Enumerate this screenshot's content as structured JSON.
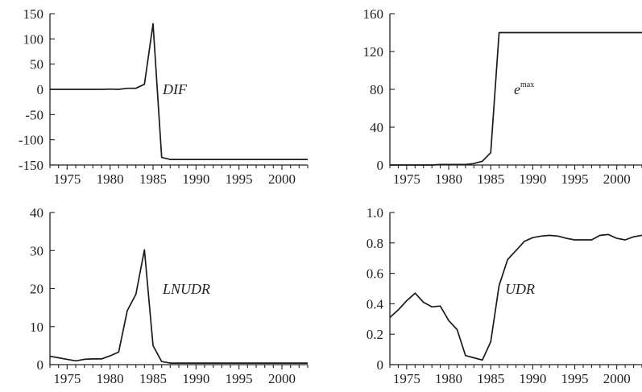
{
  "chart_data": [
    {
      "type": "line",
      "series": [
        {
          "name": "DIF",
          "x": [
            1973,
            1974,
            1975,
            1976,
            1977,
            1978,
            1979,
            1980,
            1981,
            1982,
            1983,
            1984,
            1985,
            1986,
            1987,
            1988,
            1989,
            1990,
            1991,
            1992,
            1993,
            1994,
            1995,
            1996,
            1997,
            1998,
            1999,
            2000,
            2001,
            2002,
            2003
          ],
          "values": [
            0,
            0,
            0,
            0,
            0,
            0,
            0,
            0.5,
            0,
            2,
            2,
            10,
            130,
            -135,
            -139,
            -139,
            -139,
            -139,
            -139,
            -139,
            -139,
            -139,
            -139,
            -139,
            -139,
            -139,
            -139,
            -139,
            -139,
            -139,
            -139
          ]
        }
      ],
      "series_label": "DIF",
      "xlim": [
        1973,
        2003
      ],
      "ylim": [
        -150,
        150
      ],
      "x_ticks": [
        1975,
        1980,
        1985,
        1990,
        1995,
        2000
      ],
      "y_ticks": [
        150,
        100,
        50,
        0,
        -50,
        -100,
        -150
      ],
      "x_tick_labels": [
        "1975",
        "1980",
        "1985",
        "1990",
        "1995",
        "2000"
      ],
      "y_tick_labels": [
        "150",
        "100",
        "50",
        "0",
        "-50",
        "-100",
        "-150"
      ]
    },
    {
      "type": "line",
      "series": [
        {
          "name": "e max",
          "x": [
            1973,
            1974,
            1975,
            1976,
            1977,
            1978,
            1979,
            1980,
            1981,
            1982,
            1983,
            1984,
            1985,
            1986,
            1987,
            1988,
            1989,
            1990,
            1991,
            1992,
            1993,
            1994,
            1995,
            1996,
            1997,
            1998,
            1999,
            2000,
            2001,
            2002,
            2003
          ],
          "values": [
            0,
            0,
            0,
            0,
            0,
            0,
            0.5,
            0.5,
            0.5,
            0.5,
            1.5,
            4,
            13,
            140,
            140,
            140,
            140,
            140,
            140,
            140,
            140,
            140,
            140,
            140,
            140,
            140,
            140,
            140,
            140,
            140,
            140
          ]
        }
      ],
      "series_label": "e",
      "series_label_sup": "max",
      "xlim": [
        1973,
        2003
      ],
      "ylim": [
        0,
        160
      ],
      "x_ticks": [
        1975,
        1980,
        1985,
        1990,
        1995,
        2000
      ],
      "y_ticks": [
        160,
        120,
        80,
        40,
        0
      ],
      "x_tick_labels": [
        "1975",
        "1980",
        "1985",
        "1990",
        "1995",
        "2000"
      ],
      "y_tick_labels": [
        "160",
        "120",
        "80",
        "40",
        "0"
      ]
    },
    {
      "type": "line",
      "series": [
        {
          "name": "LNUDR",
          "x": [
            1973,
            1974,
            1975,
            1976,
            1977,
            1978,
            1979,
            1980,
            1981,
            1982,
            1983,
            1984,
            1985,
            1986,
            1987,
            1988,
            1989,
            1990,
            1991,
            1992,
            1993,
            1994,
            1995,
            1996,
            1997,
            1998,
            1999,
            2000,
            2001,
            2002,
            2003
          ],
          "values": [
            2.2,
            1.8,
            1.4,
            1.0,
            1.4,
            1.5,
            1.5,
            2.3,
            3.3,
            14.2,
            18.5,
            30.2,
            5.0,
            0.8,
            0.4,
            0.4,
            0.4,
            0.4,
            0.4,
            0.4,
            0.4,
            0.4,
            0.4,
            0.4,
            0.4,
            0.4,
            0.4,
            0.4,
            0.4,
            0.4,
            0.4
          ]
        }
      ],
      "series_label": "LNUDR",
      "xlim": [
        1973,
        2003
      ],
      "ylim": [
        0,
        40
      ],
      "x_ticks": [
        1975,
        1980,
        1985,
        1990,
        1995,
        2000
      ],
      "y_ticks": [
        40,
        30,
        20,
        10,
        0
      ],
      "x_tick_labels": [
        "1975",
        "1980",
        "1985",
        "1990",
        "1995",
        "2000"
      ],
      "y_tick_labels": [
        "40",
        "30",
        "20",
        "10",
        "0"
      ]
    },
    {
      "type": "line",
      "series": [
        {
          "name": "UDR",
          "x": [
            1973,
            1974,
            1975,
            1976,
            1977,
            1978,
            1979,
            1980,
            1981,
            1982,
            1983,
            1984,
            1985,
            1986,
            1987,
            1988,
            1989,
            1990,
            1991,
            1992,
            1993,
            1994,
            1995,
            1996,
            1997,
            1998,
            1999,
            2000,
            2001,
            2002,
            2003
          ],
          "values": [
            0.31,
            0.36,
            0.42,
            0.47,
            0.41,
            0.38,
            0.385,
            0.29,
            0.23,
            0.06,
            0.045,
            0.03,
            0.15,
            0.52,
            0.69,
            0.75,
            0.81,
            0.835,
            0.845,
            0.85,
            0.845,
            0.83,
            0.82,
            0.82,
            0.82,
            0.85,
            0.855,
            0.83,
            0.82,
            0.84,
            0.85
          ]
        }
      ],
      "series_label": "UDR",
      "xlim": [
        1973,
        2003
      ],
      "ylim": [
        0,
        1.0
      ],
      "x_ticks": [
        1975,
        1980,
        1985,
        1990,
        1995,
        2000
      ],
      "y_ticks": [
        1.0,
        0.8,
        0.6,
        0.4,
        0.2,
        0
      ],
      "x_tick_labels": [
        "1975",
        "1980",
        "1985",
        "1990",
        "1995",
        "2000"
      ],
      "y_tick_labels": [
        "1.0",
        "0.8",
        "0.6",
        "0.4",
        "0.2",
        "0"
      ]
    }
  ]
}
